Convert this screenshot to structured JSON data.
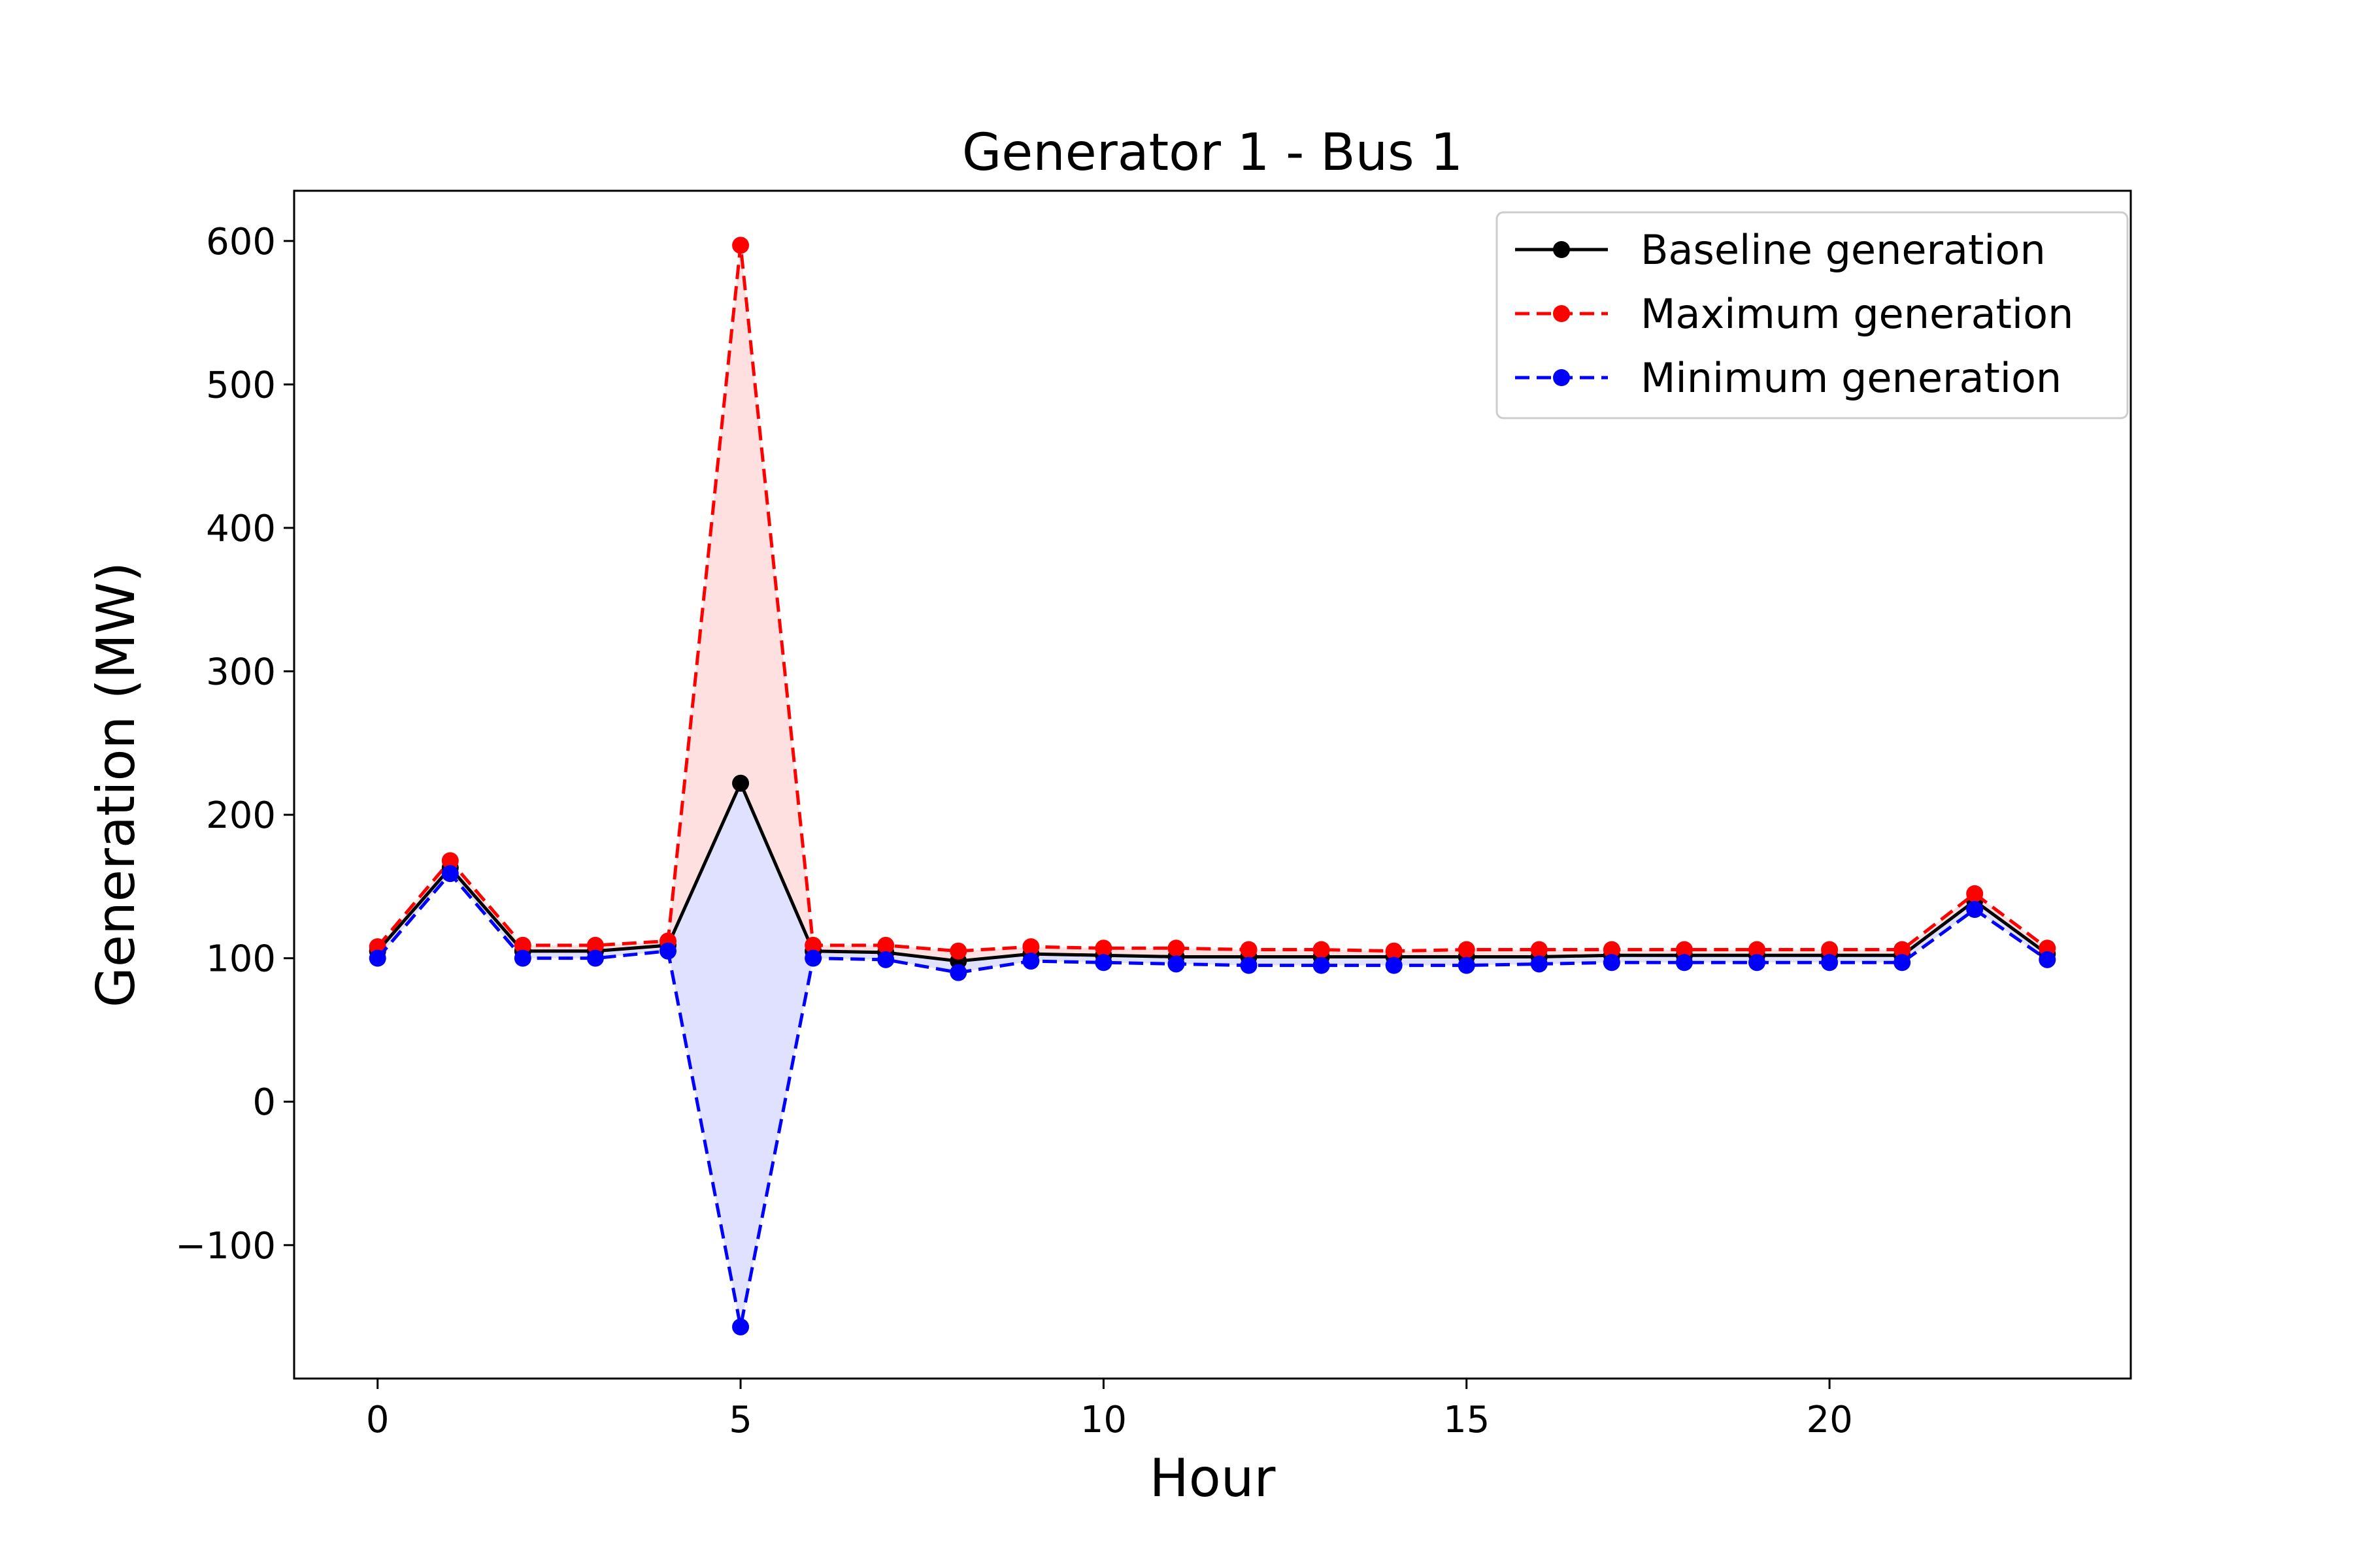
{
  "chart_data": {
    "type": "line",
    "title": "Generator 1 - Bus 1",
    "xlabel": "Hour",
    "ylabel": "Generation (MW)",
    "xlim": [
      -1.15,
      24.15
    ],
    "ylim": [
      -193,
      635
    ],
    "xticks": [
      0,
      5,
      10,
      15,
      20
    ],
    "yticks": [
      -100,
      0,
      100,
      200,
      300,
      400,
      500,
      600
    ],
    "ytick_labels": [
      "−100",
      "0",
      "100",
      "200",
      "300",
      "400",
      "500",
      "600"
    ],
    "legend_position": "top-right",
    "grid": false,
    "x": [
      0,
      1,
      2,
      3,
      4,
      5,
      6,
      7,
      8,
      9,
      10,
      11,
      12,
      13,
      14,
      15,
      16,
      17,
      18,
      19,
      20,
      21,
      22,
      23
    ],
    "series": [
      {
        "name": "Baseline generation",
        "color": "#000000",
        "dashed": false,
        "values": [
          105,
          163,
          105,
          105,
          109,
          222,
          105,
          104,
          98,
          103,
          102,
          101,
          101,
          101,
          101,
          101,
          101,
          102,
          102,
          102,
          102,
          102,
          140,
          103
        ]
      },
      {
        "name": "Maximum generation",
        "color": "#ff0000",
        "dashed": true,
        "values": [
          108,
          168,
          109,
          109,
          112,
          597,
          109,
          109,
          105,
          108,
          107,
          107,
          106,
          106,
          105,
          106,
          106,
          106,
          106,
          106,
          106,
          106,
          145,
          107
        ]
      },
      {
        "name": "Minimum generation",
        "color": "#0000ff",
        "dashed": true,
        "values": [
          100,
          159,
          100,
          100,
          105,
          -157,
          100,
          99,
          90,
          98,
          97,
          96,
          95,
          95,
          95,
          95,
          96,
          97,
          97,
          97,
          97,
          97,
          134,
          99
        ]
      }
    ],
    "fill_between": [
      {
        "upper": "Maximum generation",
        "lower": "Baseline generation",
        "color": "#ff0000",
        "opacity": 0.12
      },
      {
        "upper": "Baseline generation",
        "lower": "Minimum generation",
        "color": "#0000ff",
        "opacity": 0.12
      }
    ]
  }
}
